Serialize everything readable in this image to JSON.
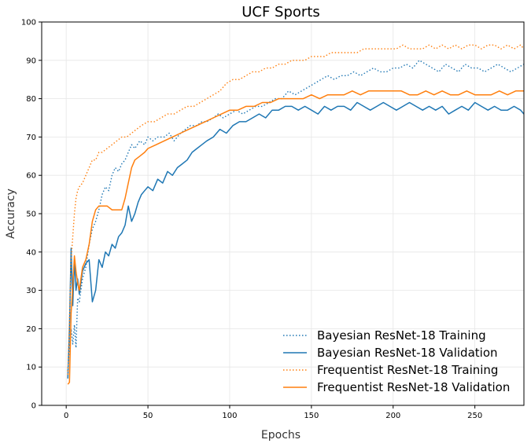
{
  "chart_data": {
    "type": "line",
    "title": "UCF Sports",
    "xlabel": "Epochs",
    "ylabel": "Accuracy",
    "xlim": [
      -15,
      280
    ],
    "ylim": [
      0,
      100
    ],
    "xticks": [
      0,
      50,
      100,
      150,
      200,
      250
    ],
    "yticks": [
      0,
      10,
      20,
      30,
      40,
      50,
      60,
      70,
      80,
      90,
      100
    ],
    "grid": true,
    "legend_position": "bottom-right",
    "series": [
      {
        "name": "Bayesian ResNet-18 Training",
        "color": "#1f77b4",
        "style": "dotted",
        "x": [
          1,
          2,
          3,
          4,
          5,
          6,
          7,
          8,
          10,
          12,
          14,
          16,
          18,
          20,
          22,
          24,
          26,
          28,
          30,
          32,
          34,
          36,
          38,
          40,
          42,
          45,
          48,
          50,
          53,
          56,
          60,
          63,
          66,
          70,
          73,
          76,
          80,
          83,
          86,
          90,
          93,
          96,
          100,
          104,
          108,
          112,
          116,
          120,
          124,
          128,
          132,
          136,
          140,
          144,
          148,
          152,
          156,
          160,
          164,
          168,
          172,
          176,
          180,
          184,
          188,
          192,
          196,
          200,
          204,
          208,
          212,
          216,
          220,
          224,
          228,
          232,
          236,
          240,
          244,
          248,
          252,
          256,
          260,
          264,
          268,
          272,
          276,
          280
        ],
        "y": [
          9,
          15,
          20,
          16,
          21,
          15,
          28,
          27,
          33,
          36,
          42,
          46,
          48,
          51,
          55,
          57,
          56,
          60,
          62,
          61,
          63,
          64,
          66,
          68,
          67,
          69,
          68,
          70,
          69,
          70,
          70,
          71,
          69,
          71,
          72,
          73,
          73,
          74,
          74,
          75,
          76,
          75,
          76,
          77,
          76,
          77,
          78,
          78,
          79,
          80,
          80,
          82,
          81,
          82,
          83,
          84,
          85,
          86,
          85,
          86,
          86,
          87,
          86,
          87,
          88,
          87,
          87,
          88,
          88,
          89,
          88,
          90,
          89,
          88,
          87,
          89,
          88,
          87,
          89,
          88,
          88,
          87,
          88,
          89,
          88,
          87,
          88,
          89
        ]
      },
      {
        "name": "Bayesian ResNet-18 Validation",
        "color": "#1f77b4",
        "style": "solid",
        "x": [
          1,
          2,
          3,
          4,
          5,
          6,
          7,
          8,
          10,
          12,
          14,
          16,
          18,
          20,
          22,
          24,
          26,
          28,
          30,
          32,
          34,
          36,
          38,
          40,
          42,
          44,
          46,
          48,
          50,
          53,
          56,
          59,
          62,
          65,
          68,
          71,
          74,
          77,
          80,
          83,
          86,
          90,
          94,
          98,
          102,
          106,
          110,
          114,
          118,
          122,
          126,
          130,
          134,
          138,
          142,
          146,
          150,
          154,
          158,
          162,
          166,
          170,
          174,
          178,
          182,
          186,
          190,
          194,
          198,
          202,
          206,
          210,
          214,
          218,
          222,
          226,
          230,
          234,
          238,
          242,
          246,
          250,
          254,
          258,
          262,
          266,
          270,
          274,
          278,
          280
        ],
        "y": [
          7,
          20,
          41,
          26,
          38,
          30,
          33,
          29,
          35,
          37,
          38,
          27,
          30,
          38,
          36,
          40,
          39,
          42,
          41,
          44,
          45,
          47,
          52,
          48,
          50,
          53,
          55,
          56,
          57,
          56,
          59,
          58,
          61,
          60,
          62,
          63,
          64,
          66,
          67,
          68,
          69,
          70,
          72,
          71,
          73,
          74,
          74,
          75,
          76,
          75,
          77,
          77,
          78,
          78,
          77,
          78,
          77,
          76,
          78,
          77,
          78,
          78,
          77,
          79,
          78,
          77,
          78,
          79,
          78,
          77,
          78,
          79,
          78,
          77,
          78,
          77,
          78,
          76,
          77,
          78,
          77,
          79,
          78,
          77,
          78,
          77,
          77,
          78,
          77,
          76
        ]
      },
      {
        "name": "Frequentist ResNet-18 Training",
        "color": "#ff7f0e",
        "style": "dotted",
        "x": [
          1,
          2,
          3,
          4,
          5,
          6,
          7,
          8,
          10,
          12,
          14,
          16,
          18,
          20,
          22,
          25,
          28,
          31,
          34,
          37,
          40,
          43,
          46,
          50,
          54,
          58,
          62,
          66,
          70,
          74,
          78,
          82,
          86,
          90,
          94,
          98,
          102,
          106,
          110,
          114,
          118,
          122,
          126,
          130,
          134,
          138,
          142,
          146,
          150,
          154,
          158,
          162,
          166,
          170,
          174,
          178,
          182,
          186,
          190,
          194,
          198,
          202,
          206,
          210,
          214,
          218,
          222,
          226,
          230,
          234,
          238,
          242,
          246,
          250,
          254,
          258,
          262,
          266,
          270,
          274,
          278,
          280
        ],
        "y": [
          8,
          22,
          38,
          44,
          50,
          54,
          56,
          57,
          58,
          60,
          62,
          64,
          64,
          66,
          66,
          67,
          68,
          69,
          70,
          70,
          71,
          72,
          73,
          74,
          74,
          75,
          76,
          76,
          77,
          78,
          78,
          79,
          80,
          81,
          82,
          84,
          85,
          85,
          86,
          87,
          87,
          88,
          88,
          89,
          89,
          90,
          90,
          90,
          91,
          91,
          91,
          92,
          92,
          92,
          92,
          92,
          93,
          93,
          93,
          93,
          93,
          93,
          94,
          93,
          93,
          93,
          94,
          93,
          94,
          93,
          94,
          93,
          94,
          94,
          93,
          94,
          94,
          93,
          94,
          93,
          94,
          93
        ]
      },
      {
        "name": "Frequentist ResNet-18 Validation",
        "color": "#ff7f0e",
        "style": "solid",
        "x": [
          1,
          2,
          3,
          4,
          5,
          6,
          7,
          8,
          10,
          12,
          14,
          16,
          18,
          20,
          22,
          25,
          28,
          30,
          32,
          34,
          36,
          38,
          40,
          42,
          45,
          48,
          50,
          55,
          60,
          65,
          70,
          75,
          80,
          85,
          90,
          95,
          100,
          105,
          110,
          115,
          120,
          125,
          130,
          135,
          140,
          145,
          150,
          155,
          160,
          165,
          170,
          175,
          180,
          185,
          190,
          195,
          200,
          205,
          210,
          215,
          220,
          225,
          230,
          235,
          240,
          245,
          250,
          255,
          260,
          265,
          270,
          275,
          280
        ],
        "y": [
          5.5,
          6,
          24,
          31,
          39,
          35,
          32,
          30,
          36,
          38,
          42,
          48,
          51,
          52,
          52,
          52,
          51,
          51,
          51,
          51,
          54,
          58,
          62,
          64,
          65,
          66,
          67,
          68,
          69,
          70,
          71,
          72,
          73,
          74,
          75,
          76,
          77,
          77,
          78,
          78,
          79,
          79,
          80,
          80,
          80,
          80,
          81,
          80,
          81,
          81,
          81,
          82,
          81,
          82,
          82,
          82,
          82,
          82,
          81,
          81,
          82,
          81,
          82,
          81,
          81,
          82,
          81,
          81,
          81,
          82,
          81,
          82,
          82
        ]
      }
    ]
  }
}
